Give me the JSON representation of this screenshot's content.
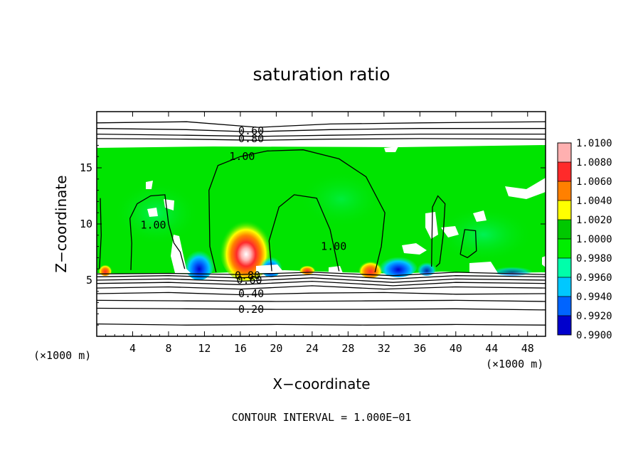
{
  "chart_data": {
    "type": "heatmap",
    "title": "saturation ratio",
    "xlabel": "X−coordinate",
    "ylabel": "Z−coordinate",
    "x_unit_left": "(×1000 m)",
    "x_unit_right": "(×1000 m)",
    "footer": "CONTOUR INTERVAL = 1.000E−01",
    "xlim": [
      0,
      50
    ],
    "ylim": [
      0,
      20
    ],
    "x_ticks": [
      4,
      8,
      12,
      16,
      20,
      24,
      28,
      32,
      36,
      40,
      44,
      48
    ],
    "y_ticks": [
      5,
      10,
      15
    ],
    "x_tick_labels": [
      "4",
      "8",
      "12",
      "16",
      "20",
      "24",
      "28",
      "32",
      "36",
      "40",
      "44",
      "48"
    ],
    "y_tick_labels": [
      "5",
      "10",
      "15"
    ],
    "colorbar": {
      "levels": [
        "1.0100",
        "1.0080",
        "1.0060",
        "1.0040",
        "1.0020",
        "1.0000",
        "0.9980",
        "0.9960",
        "0.9940",
        "0.9920",
        "0.9900"
      ],
      "colors": [
        "#ffb0b0",
        "#ff2a2a",
        "#ff8000",
        "#ffff00",
        "#00c800",
        "#00ee00",
        "#00ffaa",
        "#00c8ff",
        "#0064ff",
        "#0000cc",
        "#6a00b0"
      ]
    },
    "contour_labels": [
      {
        "text": "0.60",
        "x": 17.2,
        "y": 18.3
      },
      {
        "text": "0.80",
        "x": 17.2,
        "y": 17.6
      },
      {
        "text": "1.00",
        "x": 16.2,
        "y": 16.0
      },
      {
        "text": "1.00",
        "x": 6.3,
        "y": 9.9
      },
      {
        "text": "1.00",
        "x": 26.4,
        "y": 8.0
      },
      {
        "text": "0.40",
        "x": 17.2,
        "y": 3.8
      },
      {
        "text": "0.20",
        "x": 17.2,
        "y": 2.4
      },
      {
        "text": "0.60",
        "x": 17.0,
        "y": 5.0
      },
      {
        "text": "0.80",
        "x": 16.8,
        "y": 5.4
      }
    ],
    "contours": [
      {
        "level": 0.1,
        "points": [
          [
            0,
            1.1
          ],
          [
            10,
            1.0
          ],
          [
            20,
            1.05
          ],
          [
            30,
            1.0
          ],
          [
            40,
            1.05
          ],
          [
            50,
            1.0
          ]
        ]
      },
      {
        "level": 0.2,
        "points": [
          [
            0,
            2.5
          ],
          [
            10,
            2.45
          ],
          [
            20,
            2.4
          ],
          [
            30,
            2.4
          ],
          [
            40,
            2.45
          ],
          [
            50,
            2.35
          ]
        ]
      },
      {
        "level": 0.3,
        "points": [
          [
            0,
            3.2
          ],
          [
            10,
            3.15
          ],
          [
            20,
            3.1
          ],
          [
            30,
            3.15
          ],
          [
            40,
            3.2
          ],
          [
            50,
            3.1
          ]
        ]
      },
      {
        "level": 0.4,
        "points": [
          [
            0,
            3.8
          ],
          [
            8,
            3.9
          ],
          [
            16,
            3.7
          ],
          [
            24,
            3.85
          ],
          [
            32,
            3.9
          ],
          [
            40,
            3.75
          ],
          [
            50,
            3.8
          ]
        ]
      },
      {
        "level": 0.5,
        "points": [
          [
            0,
            4.3
          ],
          [
            8,
            4.4
          ],
          [
            16,
            4.2
          ],
          [
            24,
            4.5
          ],
          [
            32,
            4.2
          ],
          [
            40,
            4.4
          ],
          [
            50,
            4.3
          ]
        ]
      },
      {
        "level": 0.6,
        "points": [
          [
            0,
            4.7
          ],
          [
            8,
            4.8
          ],
          [
            16,
            4.6
          ],
          [
            24,
            4.9
          ],
          [
            33,
            4.5
          ],
          [
            40,
            4.8
          ],
          [
            50,
            4.7
          ]
        ]
      },
      {
        "level": 0.7,
        "points": [
          [
            0,
            5.0
          ],
          [
            8,
            5.1
          ],
          [
            16,
            4.9
          ],
          [
            24,
            5.2
          ],
          [
            33,
            4.8
          ],
          [
            40,
            5.1
          ],
          [
            50,
            5.0
          ]
        ]
      },
      {
        "level": 0.8,
        "points": [
          [
            0,
            5.3
          ],
          [
            8,
            5.4
          ],
          [
            16,
            5.2
          ],
          [
            24,
            5.5
          ],
          [
            33,
            5.1
          ],
          [
            40,
            5.4
          ],
          [
            50,
            5.3
          ]
        ]
      },
      {
        "level": 0.9,
        "points": [
          [
            0,
            5.55
          ],
          [
            8,
            5.6
          ],
          [
            16,
            5.5
          ],
          [
            24,
            5.7
          ],
          [
            33,
            5.4
          ],
          [
            40,
            5.7
          ],
          [
            50,
            5.5
          ]
        ]
      },
      {
        "level": 0.5,
        "points": [
          [
            0,
            19.0
          ],
          [
            10,
            19.1
          ],
          [
            18,
            18.6
          ],
          [
            26,
            18.9
          ],
          [
            36,
            19.0
          ],
          [
            50,
            19.1
          ]
        ]
      },
      {
        "level": 0.6,
        "points": [
          [
            0,
            18.5
          ],
          [
            10,
            18.4
          ],
          [
            17,
            18.2
          ],
          [
            26,
            18.4
          ],
          [
            36,
            18.5
          ],
          [
            50,
            18.5
          ]
        ]
      },
      {
        "level": 0.7,
        "points": [
          [
            0,
            18.0
          ],
          [
            10,
            17.9
          ],
          [
            18,
            17.8
          ],
          [
            26,
            17.9
          ],
          [
            36,
            18.0
          ],
          [
            50,
            18.0
          ]
        ]
      },
      {
        "level": 0.8,
        "points": [
          [
            0,
            17.6
          ],
          [
            10,
            17.55
          ],
          [
            18,
            17.45
          ],
          [
            26,
            17.55
          ],
          [
            36,
            17.6
          ],
          [
            50,
            17.55
          ]
        ]
      },
      {
        "level": 1.0,
        "points": [
          [
            13.3,
            5.7
          ],
          [
            12.6,
            8
          ],
          [
            12.5,
            13
          ],
          [
            13.5,
            15.2
          ],
          [
            16,
            16.0
          ],
          [
            19,
            16.5
          ],
          [
            23,
            16.6
          ],
          [
            27,
            15.8
          ],
          [
            30,
            14.2
          ],
          [
            32.1,
            11
          ],
          [
            31.7,
            8
          ],
          [
            31,
            5.7
          ]
        ]
      },
      {
        "level": 1.0,
        "points": [
          [
            19.5,
            5.8
          ],
          [
            19.2,
            8.5
          ],
          [
            20.3,
            11.5
          ],
          [
            22,
            12.6
          ],
          [
            24.5,
            12.3
          ],
          [
            26,
            9.5
          ],
          [
            26.8,
            6.5
          ],
          [
            27,
            5.8
          ]
        ]
      },
      {
        "level": 1.0,
        "points": [
          [
            3.8,
            5.9
          ],
          [
            3.9,
            8.3
          ],
          [
            3.7,
            10.5
          ],
          [
            4.5,
            11.8
          ],
          [
            6,
            12.5
          ],
          [
            7.6,
            12.6
          ],
          [
            8,
            10
          ],
          [
            8.6,
            8.3
          ],
          [
            9.3,
            7.5
          ],
          [
            9.8,
            6
          ]
        ]
      },
      {
        "level": 1.0,
        "points": [
          [
            37.3,
            6.2
          ],
          [
            37.4,
            11.5
          ],
          [
            38,
            12.5
          ],
          [
            38.8,
            11.8
          ],
          [
            38.6,
            9
          ],
          [
            38.2,
            6.5
          ],
          [
            37.8,
            6.2
          ]
        ]
      },
      {
        "level": 1.0,
        "points": [
          [
            40.5,
            7.3
          ],
          [
            41,
            9.5
          ],
          [
            42.2,
            9.4
          ],
          [
            42.3,
            7.6
          ],
          [
            41.3,
            7.0
          ],
          [
            40.5,
            7.3
          ]
        ]
      },
      {
        "level": 1.0,
        "points": [
          [
            0.4,
            12.3
          ],
          [
            0.5,
            9
          ],
          [
            0.3,
            6
          ]
        ]
      }
    ]
  }
}
